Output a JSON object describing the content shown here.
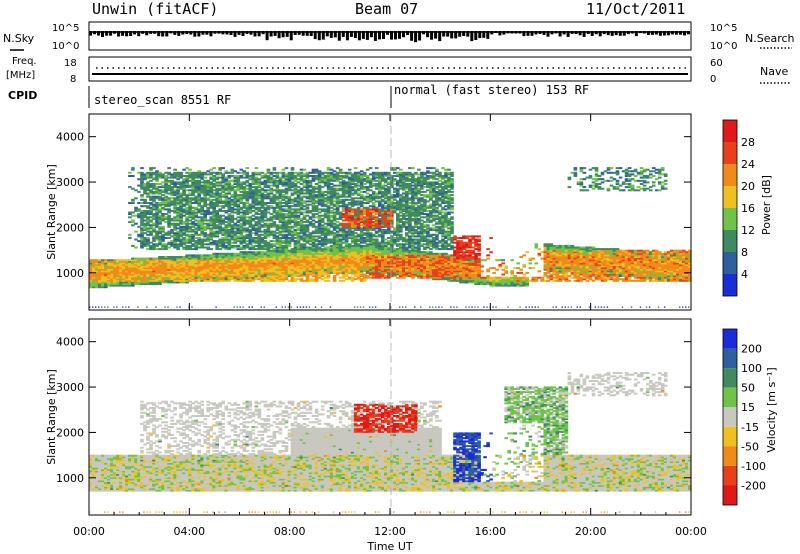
{
  "header": {
    "left_title": "Unwin (fitACF)",
    "center_title": "Beam 07",
    "right_title": "11/Oct/2011"
  },
  "noise_panel": {
    "left_label": "N.Sky",
    "right_label": "N.Search",
    "left_ticks": [
      "10^5",
      "10^0"
    ],
    "right_ticks": [
      "10^5",
      "10^0"
    ]
  },
  "freq_panel": {
    "left_label_1": "Freq.",
    "left_label_2": "[MHz]",
    "left_ticks": [
      "18",
      "8"
    ],
    "right_label": "Nave",
    "right_ticks": [
      "60",
      "0"
    ]
  },
  "cpid_panel": {
    "label": "CPID",
    "mode_1": "stereo_scan 8551 RF",
    "mode_2": "normal (fast stereo) 153 RF"
  },
  "x_axis": {
    "label": "Time UT",
    "ticks": [
      "00:00",
      "04:00",
      "08:00",
      "12:00",
      "16:00",
      "20:00",
      "00:00"
    ]
  },
  "y_axis": {
    "label": "Slant Range [km]",
    "ticks": [
      "1000",
      "2000",
      "3000",
      "4000"
    ]
  },
  "power_colorbar": {
    "label": "Power [dB]",
    "ticks": [
      "4",
      "8",
      "12",
      "16",
      "20",
      "24",
      "28"
    ],
    "colors": [
      "#1a2bd8",
      "#2f5f9e",
      "#3f8a5e",
      "#6fc24a",
      "#f0c020",
      "#f08a1a",
      "#e8401a",
      "#e01818"
    ]
  },
  "velocity_colorbar": {
    "label": "Velocity [m s⁻¹]",
    "ticks": [
      "200",
      "100",
      "50",
      "15",
      "-15",
      "-50",
      "-100",
      "-200"
    ],
    "colors": [
      "#1a2bd8",
      "#2f5f9e",
      "#3f8a5e",
      "#6fc24a",
      "#c8c8c0",
      "#f0c020",
      "#f08a1a",
      "#e8401a",
      "#e01818"
    ]
  },
  "chart_data": [
    {
      "type": "heatmap",
      "name": "Power",
      "x_range": [
        "00:00",
        "24:00"
      ],
      "y_range": [
        180,
        4500
      ],
      "colorbar_range": [
        0,
        32
      ],
      "regions": [
        {
          "t0": 0.0,
          "t1": 11.0,
          "r0": 780,
          "r1": 1300,
          "value": 20
        },
        {
          "t0": 11.0,
          "t1": 16.5,
          "r0": 850,
          "r1": 1400,
          "value": 24
        },
        {
          "t0": 10.0,
          "t1": 12.0,
          "r0": 2000,
          "r1": 2400,
          "value": 26
        },
        {
          "t0": 14.5,
          "t1": 16.0,
          "r0": 1300,
          "r1": 1800,
          "value": 28
        },
        {
          "t0": 17.0,
          "t1": 24.0,
          "r0": 800,
          "r1": 1500,
          "value": 22
        },
        {
          "t0": 2.0,
          "t1": 14.5,
          "r0": 1500,
          "r1": 3200,
          "value": 10
        }
      ]
    },
    {
      "type": "heatmap",
      "name": "Velocity",
      "x_range": [
        "00:00",
        "24:00"
      ],
      "y_range": [
        180,
        4500
      ],
      "colorbar_range": [
        -250,
        250
      ],
      "regions": [
        {
          "t0": 0.0,
          "t1": 24.0,
          "r0": 700,
          "r1": 1500,
          "value": 0
        },
        {
          "t0": 10.5,
          "t1": 13.0,
          "r0": 2000,
          "r1": 2600,
          "value": -200
        },
        {
          "t0": 14.5,
          "t1": 16.0,
          "r0": 900,
          "r1": 2000,
          "value": 200
        },
        {
          "t0": 16.5,
          "t1": 19.0,
          "r0": 1500,
          "r1": 3000,
          "value": 30
        }
      ]
    }
  ]
}
